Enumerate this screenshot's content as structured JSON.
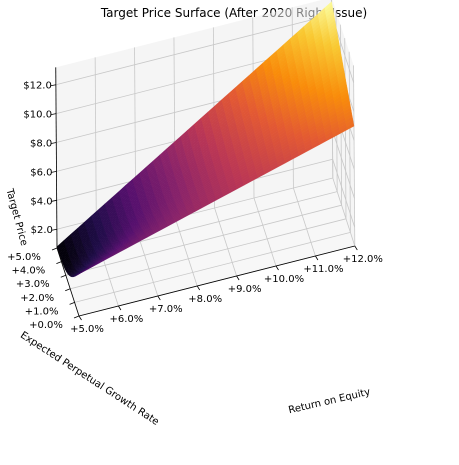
{
  "chart_data": {
    "type": "surface",
    "title": "Target Price Surface (After 2020 Right Issue)",
    "xlabel": "Return on Equity",
    "ylabel": "Expected Perpetual Growth Rate",
    "zlabel": "Target Price",
    "x_ticks": [
      "+5.0%",
      "+6.0%",
      "+7.0%",
      "+8.0%",
      "+9.0%",
      "+10.0%",
      "+11.0%",
      "+12.0%"
    ],
    "y_ticks": [
      "+0.0%",
      "+1.0%",
      "+2.0%",
      "+3.0%",
      "+4.0%",
      "+5.0%"
    ],
    "z_ticks": [
      "$2.0",
      "$4.0",
      "$6.0",
      "$8.0",
      "$10.0",
      "$12.0"
    ],
    "xlim": [
      5.0,
      12.0
    ],
    "ylim": [
      0.0,
      5.0
    ],
    "zlim": [
      0.7,
      13.2
    ],
    "colormap": "inferno",
    "corner_values": {
      "roe_5_g_0": 3.6,
      "roe_5_g_5": 0.8,
      "roe_12_g_0": 9.0,
      "roe_12_g_5": 12.9
    },
    "grid": true
  }
}
